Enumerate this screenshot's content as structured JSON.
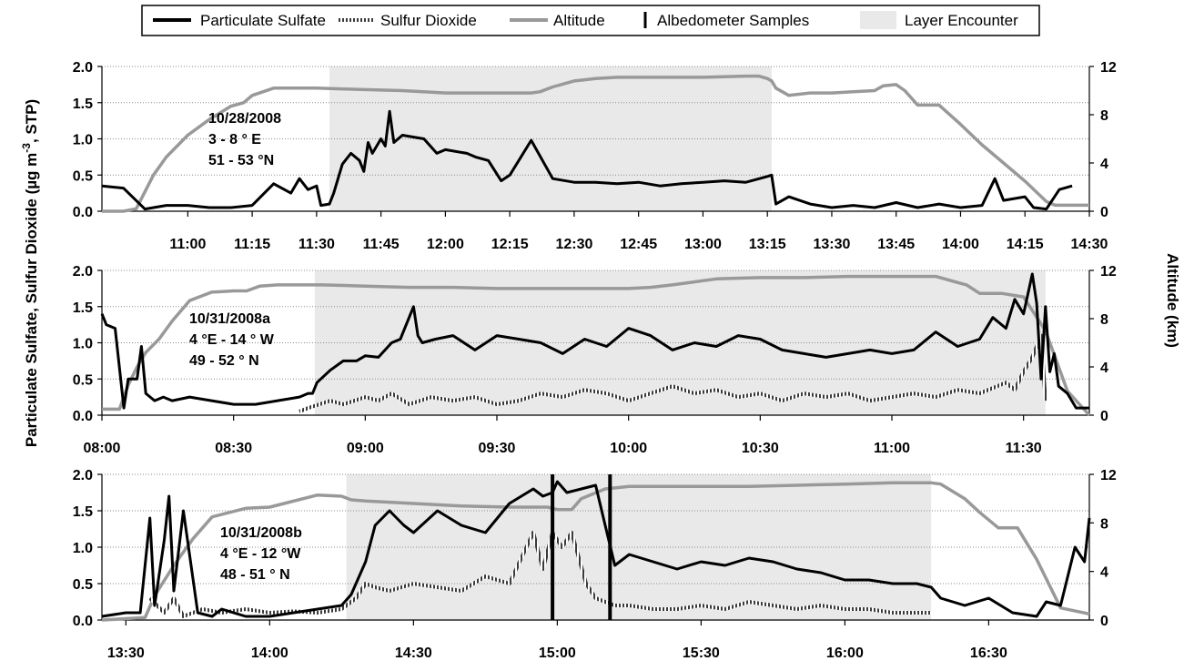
{
  "legend": [
    {
      "label": "Particulate Sulfate"
    },
    {
      "label": "Sulfur Dioxide"
    },
    {
      "label": "Altitude"
    },
    {
      "label": "Albedometer Samples"
    },
    {
      "label": "Layer Encounter"
    }
  ],
  "left_axis_label": "Particulate Sulfate, Sulfur Dioxide  (µg m",
  "left_axis_sup": "-3",
  "left_axis_label_end": ", STP)",
  "right_axis_label": "Altitude (km)",
  "colors": {
    "sulfate": "#000000",
    "so2": "#555555",
    "altitude": "#999999",
    "layer": "#e9e9e9",
    "albedometer": "#000000"
  },
  "chart_data": [
    {
      "type": "line",
      "annotation": [
        "10/28/2008",
        "3 - 8 ° E",
        "51 - 53 °N"
      ],
      "x_unit": "minutes",
      "xlim": [
        640,
        870
      ],
      "x_ticks": [
        660,
        675,
        690,
        705,
        720,
        735,
        750,
        765,
        780,
        795,
        810,
        825,
        840,
        855,
        870
      ],
      "x_tick_labels": [
        "11:00",
        "11:15",
        "11:30",
        "11:45",
        "12:00",
        "12:15",
        "12:30",
        "12:45",
        "13:00",
        "13:15",
        "13:30",
        "13:45",
        "14:00",
        "14:15",
        "14:30"
      ],
      "ylim": [
        0,
        2.0
      ],
      "y_ticks": [
        0,
        0.5,
        1.0,
        1.5,
        2.0
      ],
      "y_tick_labels": [
        "0.0",
        "0.5",
        "1.0",
        "1.5",
        "2.0"
      ],
      "y2lim": [
        0,
        12
      ],
      "y2_ticks": [
        0,
        4,
        8,
        12
      ],
      "y2_tick_labels": [
        "0",
        "4",
        "8",
        "12"
      ],
      "layer_encounter": [
        [
          693,
          796
        ]
      ],
      "albedometer_samples": [],
      "series": [
        {
          "key": "sulfate",
          "x": [
            640,
            645,
            650,
            655,
            660,
            665,
            670,
            675,
            680,
            684,
            686,
            688,
            690,
            691,
            693,
            694,
            696,
            698,
            700,
            701,
            702,
            703,
            705,
            706,
            707,
            708,
            710,
            715,
            718,
            720,
            725,
            727,
            730,
            733,
            735,
            740,
            745,
            750,
            755,
            760,
            765,
            770,
            775,
            780,
            785,
            790,
            795,
            796,
            797,
            800,
            805,
            810,
            815,
            820,
            825,
            830,
            835,
            840,
            845,
            848,
            850,
            855,
            857,
            860,
            863,
            866
          ],
          "y": [
            0.35,
            0.32,
            0.03,
            0.08,
            0.08,
            0.05,
            0.05,
            0.08,
            0.38,
            0.25,
            0.45,
            0.3,
            0.35,
            0.08,
            0.1,
            0.25,
            0.65,
            0.8,
            0.7,
            0.55,
            0.95,
            0.8,
            1.0,
            0.9,
            1.38,
            0.95,
            1.05,
            1.0,
            0.8,
            0.85,
            0.8,
            0.75,
            0.7,
            0.42,
            0.5,
            0.98,
            0.45,
            0.4,
            0.4,
            0.38,
            0.4,
            0.35,
            0.38,
            0.4,
            0.42,
            0.4,
            0.48,
            0.5,
            0.1,
            0.2,
            0.1,
            0.05,
            0.08,
            0.05,
            0.12,
            0.05,
            0.1,
            0.05,
            0.08,
            0.45,
            0.15,
            0.2,
            0.05,
            0.03,
            0.3,
            0.35
          ]
        },
        {
          "key": "so2",
          "x": [],
          "y": []
        },
        {
          "key": "altitude",
          "axis": "right",
          "x": [
            640,
            645,
            648,
            652,
            655,
            660,
            665,
            670,
            673,
            675,
            680,
            685,
            690,
            700,
            710,
            720,
            730,
            740,
            742,
            745,
            750,
            755,
            760,
            770,
            780,
            790,
            793,
            795,
            796,
            797,
            800,
            805,
            810,
            815,
            820,
            822,
            825,
            827,
            830,
            835,
            840,
            845,
            850,
            855,
            860,
            862,
            865,
            870
          ],
          "y": [
            0,
            0,
            0.2,
            3,
            4.5,
            6.3,
            7.6,
            8.7,
            9.0,
            9.6,
            10.2,
            10.2,
            10.2,
            10.1,
            10.0,
            9.8,
            9.8,
            9.8,
            9.9,
            10.3,
            10.8,
            11.0,
            11.1,
            11.1,
            11.1,
            11.2,
            11.2,
            11.0,
            10.8,
            10.2,
            9.6,
            9.8,
            9.8,
            9.9,
            10.0,
            10.4,
            10.5,
            10.0,
            8.8,
            8.8,
            7.2,
            5.5,
            4.0,
            2.5,
            0.8,
            0.5,
            0.5,
            0.5
          ]
        }
      ]
    },
    {
      "type": "line",
      "annotation": [
        "10/31/2008a",
        "4 °E - 14 ° W",
        "49 - 52 ° N"
      ],
      "x_unit": "minutes",
      "xlim": [
        480,
        705
      ],
      "x_ticks": [
        480,
        510,
        540,
        570,
        600,
        630,
        660,
        690
      ],
      "x_tick_labels": [
        "08:00",
        "08:30",
        "09:00",
        "09:30",
        "10:00",
        "10:30",
        "11:00",
        "11:30"
      ],
      "ylim": [
        0,
        2.0
      ],
      "y_ticks": [
        0,
        0.5,
        1.0,
        1.5,
        2.0
      ],
      "y_tick_labels": [
        "0.0",
        "0.5",
        "1.0",
        "1.5",
        "2.0"
      ],
      "y2lim": [
        0,
        12
      ],
      "y2_ticks": [
        0,
        4,
        8,
        12
      ],
      "y2_tick_labels": [
        "0",
        "4",
        "8",
        "12"
      ],
      "layer_encounter": [
        [
          528.5,
          695
        ]
      ],
      "albedometer_samples": [],
      "series": [
        {
          "key": "sulfate",
          "x": [
            480,
            481,
            483,
            485,
            486,
            488,
            489,
            490,
            492,
            494,
            496,
            500,
            505,
            510,
            515,
            520,
            525,
            527,
            528,
            529,
            532,
            535,
            538,
            540,
            543,
            546,
            548,
            551,
            552,
            553,
            556,
            560,
            565,
            570,
            575,
            580,
            585,
            590,
            595,
            600,
            605,
            610,
            615,
            620,
            625,
            630,
            635,
            640,
            645,
            650,
            655,
            660,
            665,
            670,
            675,
            680,
            683,
            686,
            688,
            690,
            692,
            693,
            694,
            695,
            696,
            697,
            698,
            700,
            702,
            705
          ],
          "y": [
            1.4,
            1.25,
            1.2,
            0.1,
            0.5,
            0.5,
            0.95,
            0.3,
            0.2,
            0.25,
            0.2,
            0.25,
            0.2,
            0.15,
            0.15,
            0.2,
            0.25,
            0.3,
            0.3,
            0.45,
            0.62,
            0.75,
            0.75,
            0.82,
            0.8,
            1.0,
            1.05,
            1.5,
            1.1,
            1.0,
            1.05,
            1.1,
            0.9,
            1.1,
            1.05,
            1.0,
            0.85,
            1.05,
            0.95,
            1.2,
            1.1,
            0.9,
            1.0,
            0.95,
            1.1,
            1.05,
            0.9,
            0.85,
            0.8,
            0.85,
            0.9,
            0.85,
            0.9,
            1.15,
            0.95,
            1.05,
            1.35,
            1.2,
            1.6,
            1.4,
            1.95,
            1.55,
            0.5,
            1.5,
            0.6,
            0.85,
            0.4,
            0.3,
            0.1,
            0.1
          ]
        },
        {
          "key": "so2",
          "x": [
            525,
            527,
            532,
            535,
            540,
            543,
            546,
            550,
            555,
            560,
            565,
            570,
            575,
            580,
            585,
            590,
            595,
            600,
            605,
            610,
            615,
            620,
            625,
            630,
            635,
            640,
            645,
            650,
            655,
            660,
            665,
            670,
            675,
            680,
            684,
            686,
            688,
            690,
            692,
            694,
            695
          ],
          "y": [
            0.05,
            0.1,
            0.2,
            0.15,
            0.25,
            0.2,
            0.3,
            0.15,
            0.25,
            0.2,
            0.25,
            0.15,
            0.2,
            0.3,
            0.25,
            0.35,
            0.3,
            0.2,
            0.3,
            0.4,
            0.3,
            0.35,
            0.25,
            0.3,
            0.2,
            0.3,
            0.25,
            0.3,
            0.2,
            0.25,
            0.3,
            0.25,
            0.35,
            0.3,
            0.4,
            0.45,
            0.35,
            0.6,
            0.8,
            1.1,
            0.2
          ]
        },
        {
          "key": "altitude",
          "axis": "right",
          "x": [
            480,
            484,
            486,
            488,
            490,
            493,
            496,
            500,
            505,
            510,
            513,
            516,
            520,
            530,
            540,
            550,
            560,
            570,
            580,
            590,
            600,
            605,
            610,
            620,
            630,
            640,
            650,
            660,
            665,
            670,
            675,
            677,
            680,
            685,
            690,
            695,
            700,
            705
          ],
          "y": [
            0.5,
            0.5,
            2.5,
            4.0,
            5.2,
            6.3,
            7.8,
            9.5,
            10.2,
            10.3,
            10.3,
            10.7,
            10.8,
            10.8,
            10.7,
            10.6,
            10.6,
            10.5,
            10.5,
            10.5,
            10.5,
            10.6,
            10.8,
            11.3,
            11.4,
            11.4,
            11.5,
            11.5,
            11.5,
            11.5,
            11.0,
            10.8,
            10.1,
            10.1,
            9.8,
            7.0,
            2.0,
            0.0
          ]
        }
      ]
    },
    {
      "type": "line",
      "annotation": [
        "10/31/2008b",
        "4 °E - 12 °W",
        "48 - 51 ° N"
      ],
      "x_unit": "minutes",
      "xlim": [
        805,
        1011
      ],
      "x_ticks": [
        810,
        840,
        870,
        900,
        930,
        960,
        990
      ],
      "x_tick_labels": [
        "13:30",
        "14:00",
        "14:30",
        "15:00",
        "15:30",
        "16:00",
        "16:30"
      ],
      "ylim": [
        0,
        2.0
      ],
      "y_ticks": [
        0,
        0.5,
        1.0,
        1.5,
        2.0
      ],
      "y_tick_labels": [
        "0.0",
        "0.5",
        "1.0",
        "1.5",
        "2.0"
      ],
      "y2lim": [
        0,
        12
      ],
      "y2_ticks": [
        0,
        4,
        8,
        12
      ],
      "y2_tick_labels": [
        "0",
        "4",
        "8",
        "12"
      ],
      "layer_encounter": [
        [
          856,
          978
        ]
      ],
      "albedometer_samples": [
        899,
        911
      ],
      "series": [
        {
          "key": "sulfate",
          "x": [
            805,
            810,
            813,
            815,
            816,
            818,
            819,
            820,
            822,
            825,
            828,
            830,
            835,
            840,
            845,
            850,
            855,
            857,
            860,
            862,
            865,
            868,
            870,
            875,
            880,
            885,
            890,
            895,
            897,
            899,
            900,
            902,
            905,
            908,
            910,
            912,
            915,
            920,
            925,
            930,
            935,
            940,
            945,
            950,
            955,
            960,
            965,
            970,
            975,
            978,
            980,
            985,
            990,
            995,
            1000,
            1002,
            1005,
            1008,
            1010,
            1011
          ],
          "y": [
            0.05,
            0.1,
            0.1,
            1.4,
            0.2,
            1.1,
            1.7,
            0.4,
            1.5,
            0.1,
            0.05,
            0.15,
            0.05,
            0.05,
            0.1,
            0.15,
            0.2,
            0.35,
            0.8,
            1.3,
            1.5,
            1.3,
            1.2,
            1.5,
            1.3,
            1.2,
            1.6,
            1.8,
            1.7,
            1.75,
            1.9,
            1.75,
            1.8,
            1.85,
            1.3,
            0.75,
            0.9,
            0.8,
            0.7,
            0.8,
            0.75,
            0.85,
            0.8,
            0.7,
            0.65,
            0.55,
            0.55,
            0.5,
            0.5,
            0.45,
            0.3,
            0.2,
            0.3,
            0.1,
            0.05,
            0.25,
            0.2,
            1.0,
            0.8,
            1.4
          ]
        },
        {
          "key": "so2",
          "x": [
            815,
            818,
            820,
            822,
            826,
            830,
            835,
            840,
            845,
            850,
            855,
            858,
            860,
            862,
            865,
            870,
            875,
            880,
            885,
            890,
            895,
            897,
            899,
            901,
            903,
            906,
            908,
            910,
            912,
            915,
            920,
            925,
            930,
            935,
            940,
            945,
            950,
            955,
            960,
            965,
            970,
            975,
            978
          ],
          "y": [
            0.3,
            0.1,
            0.3,
            0.05,
            0.15,
            0.1,
            0.15,
            0.1,
            0.12,
            0.1,
            0.15,
            0.3,
            0.5,
            0.45,
            0.4,
            0.5,
            0.45,
            0.4,
            0.6,
            0.5,
            1.2,
            0.7,
            1.2,
            1.0,
            1.2,
            0.5,
            0.3,
            0.25,
            0.2,
            0.2,
            0.15,
            0.15,
            0.2,
            0.15,
            0.25,
            0.2,
            0.15,
            0.2,
            0.15,
            0.15,
            0.1,
            0.1,
            0.1
          ]
        },
        {
          "key": "altitude",
          "axis": "right",
          "x": [
            805,
            814,
            816,
            820,
            824,
            828,
            835,
            840,
            850,
            855,
            857,
            860,
            870,
            880,
            890,
            898,
            900,
            903,
            905,
            910,
            915,
            920,
            930,
            940,
            950,
            960,
            970,
            978,
            980,
            985,
            988,
            992,
            996,
            1000,
            1005,
            1011
          ],
          "y": [
            0,
            0.2,
            2.0,
            4.5,
            6.7,
            8.5,
            9.2,
            9.3,
            10.3,
            10.2,
            9.9,
            9.8,
            9.6,
            9.4,
            9.3,
            9.3,
            9.1,
            9.1,
            10.0,
            10.8,
            11.0,
            11.0,
            11.0,
            11.0,
            11.1,
            11.2,
            11.3,
            11.3,
            11.2,
            10.0,
            8.9,
            7.6,
            7.6,
            5.0,
            1.0,
            0.5
          ]
        }
      ]
    }
  ]
}
